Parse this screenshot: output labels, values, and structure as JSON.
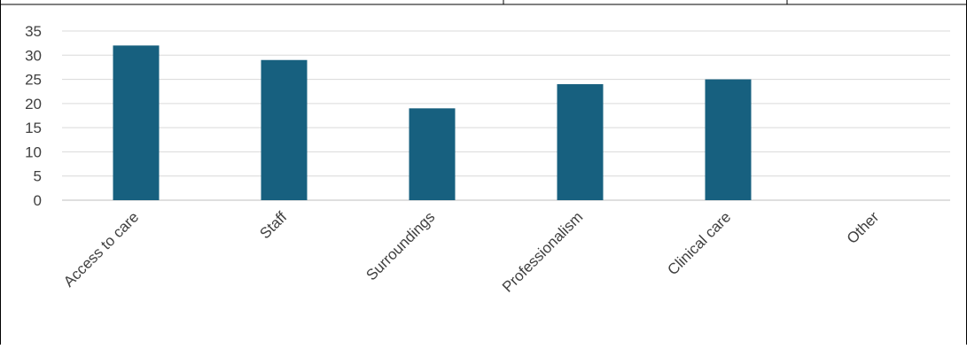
{
  "chart_data": {
    "type": "bar",
    "categories": [
      "Access to care",
      "Staff",
      "Surroundings",
      "Professionalism",
      "Clinical care",
      "Other"
    ],
    "values": [
      32,
      29,
      19,
      24,
      25,
      0
    ],
    "y_ticks": [
      "0",
      "5",
      "10",
      "15",
      "20",
      "25",
      "30",
      "35"
    ],
    "ylim": [
      0,
      35
    ],
    "grid": true,
    "bar_color": "#17607f",
    "grid_color": "#d9d9d9",
    "axis_color": "#bfbfbf",
    "label_color": "#404040"
  }
}
